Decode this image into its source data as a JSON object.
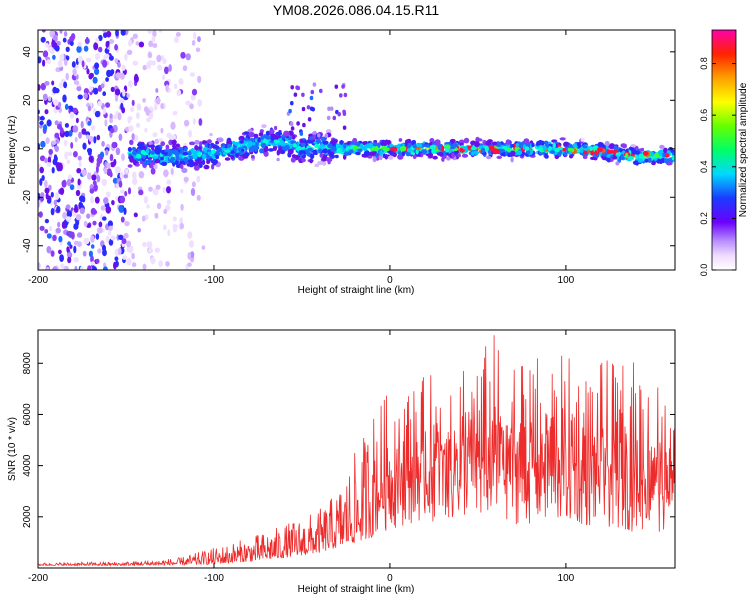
{
  "title": "YM08.2026.086.04.15.R11",
  "chart_data": [
    {
      "type": "heatmap",
      "title": "YM08.2026.086.04.15.R11",
      "xlabel": "Height of straight line (km)",
      "ylabel": "Frequency (Hz)",
      "xlim": [
        -200,
        162
      ],
      "ylim": [
        -50,
        49
      ],
      "xticks": [
        -200,
        -100,
        0,
        100
      ],
      "yticks": [
        -40,
        -20,
        0,
        20,
        40
      ],
      "xtick_labels": [
        "-200",
        "-100",
        "0",
        "100"
      ],
      "ytick_labels": [
        "-40",
        "-20",
        "0",
        "20",
        "40"
      ],
      "ridge": {
        "x": [
          -145,
          -130,
          -115,
          -100,
          -90,
          -80,
          -70,
          -60,
          -50,
          -40,
          -30,
          -20,
          -10,
          0,
          20,
          40,
          60,
          80,
          100,
          120,
          130,
          140,
          150,
          160
        ],
        "freq": [
          -2,
          -3,
          -3,
          -2,
          0,
          2,
          3,
          2,
          0,
          1,
          0,
          0,
          0,
          0,
          0,
          0,
          0,
          0,
          0,
          -1,
          -2,
          -3,
          -3,
          -3
        ]
      },
      "colorbar": {
        "label": "Normalized spectral amplitude",
        "min": 0,
        "max": 0.93,
        "ticks": [
          0.0,
          0.2,
          0.4,
          0.6,
          0.8
        ],
        "tick_labels": [
          "0.0",
          "0.2",
          "0.4",
          "0.6",
          "0.8"
        ]
      }
    },
    {
      "type": "line",
      "xlabel": "Height of straight line (km)",
      "ylabel": "SNR (10 * v/v)",
      "xlim": [
        -200,
        162
      ],
      "ylim": [
        0,
        9300
      ],
      "xticks": [
        -200,
        -100,
        0,
        100
      ],
      "yticks": [
        2000,
        4000,
        6000,
        8000
      ],
      "xtick_labels": [
        "-200",
        "-100",
        "0",
        "100"
      ],
      "ytick_labels": [
        "2000",
        "4000",
        "6000",
        "8000"
      ],
      "series": [
        {
          "name": "SNR",
          "color": "#ee2b2b",
          "envelope": {
            "x": [
              -200,
              -150,
              -120,
              -100,
              -80,
              -60,
              -40,
              -30,
              -20,
              -10,
              0,
              10,
              20,
              30,
              40,
              50,
              60,
              70,
              80,
              90,
              100,
              110,
              120,
              130,
              140,
              150,
              162
            ],
            "low": [
              100,
              100,
              120,
              150,
              250,
              400,
              600,
              800,
              1000,
              1200,
              1500,
              1700,
              1800,
              1800,
              1800,
              1800,
              1800,
              1700,
              1700,
              1700,
              1600,
              1600,
              1500,
              1500,
              1400,
              1400,
              1400
            ],
            "high": [
              200,
              250,
              400,
              800,
              1200,
              1700,
              2300,
              3000,
              4500,
              6000,
              7000,
              7200,
              7500,
              8000,
              8600,
              8400,
              9300,
              8600,
              8400,
              8200,
              8400,
              7600,
              8200,
              8000,
              8200,
              8200,
              5500
            ]
          }
        }
      ]
    }
  ]
}
